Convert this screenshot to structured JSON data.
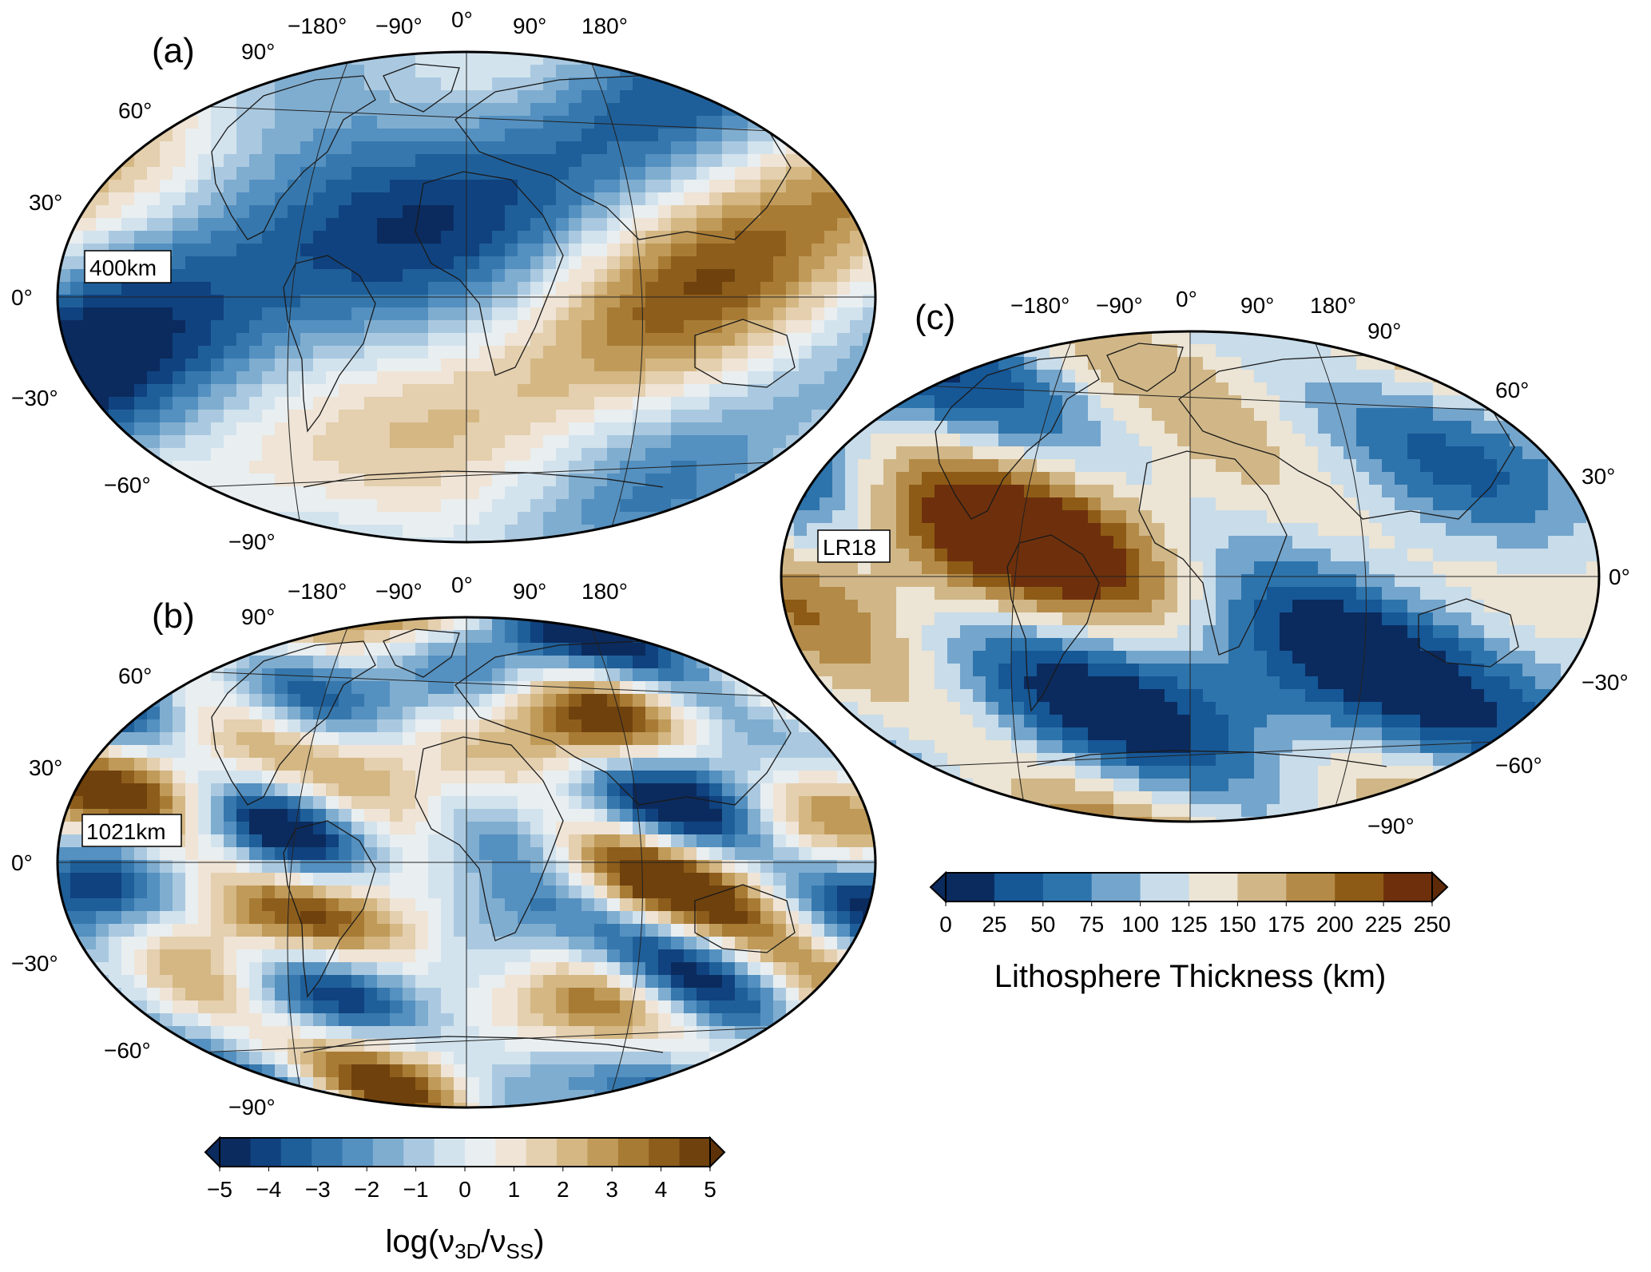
{
  "panels": [
    {
      "id": "a",
      "panel_label": "(a)",
      "depth_label": "400km",
      "palette": "viscosity",
      "seed": 11,
      "bias": 0.0,
      "top_lon_labels": [
        "−180°",
        "−90°",
        "0°",
        "90°",
        "180°"
      ],
      "top_lat_label": "90°",
      "bottom_lat_label": "−90°",
      "side_lat_labels": [
        "60°",
        "30°",
        "0°",
        "−30°",
        "−60°"
      ]
    },
    {
      "id": "b",
      "panel_label": "(b)",
      "depth_label": "1021km",
      "palette": "viscosity",
      "seed": 29,
      "bias": 0.0,
      "top_lon_labels": [
        "−180°",
        "−90°",
        "0°",
        "90°",
        "180°"
      ],
      "top_lat_label": "90°",
      "bottom_lat_label": "−90°",
      "side_lat_labels": [
        "60°",
        "30°",
        "0°",
        "−30°",
        "−60°"
      ]
    },
    {
      "id": "c",
      "panel_label": "(c)",
      "depth_label": "LR18",
      "palette": "lithosphere",
      "seed": 47,
      "bias": 0.0,
      "top_lon_labels": [
        "−180°",
        "−90°",
        "0°",
        "90°",
        "180°"
      ],
      "top_lat_label": "90°",
      "bottom_lat_label": "−90°",
      "side_lat_labels": [
        "60°",
        "30°",
        "0°",
        "−30°",
        "−60°"
      ]
    }
  ],
  "colorbars": [
    {
      "id": "viscosity",
      "ticks": [
        "−5",
        "−4",
        "−3",
        "−2",
        "−1",
        "0",
        "1",
        "2",
        "3",
        "4",
        "5"
      ],
      "title": "log(ν",
      "title_sub1": "3D",
      "title_mid": "/ν",
      "title_sub2": "SS",
      "title_end": ")",
      "colors": [
        "#0b2b5e",
        "#10427f",
        "#1f5f99",
        "#3678ad",
        "#5490c0",
        "#7fadd0",
        "#aac9e0",
        "#d2e3ee",
        "#e9eef0",
        "#efe4d6",
        "#e4cfae",
        "#d4b783",
        "#c09a59",
        "#a87b35",
        "#8d5d1c",
        "#6f410d"
      ],
      "under_color": "#0b2b5e",
      "over_color": "#5e3208"
    },
    {
      "id": "lithosphere",
      "ticks": [
        "0",
        "25",
        "50",
        "75",
        "100",
        "125",
        "150",
        "175",
        "200",
        "225",
        "250"
      ],
      "title": "Lithosphere Thickness (km)",
      "colors": [
        "#0b2b5e",
        "#165796",
        "#2e74ac",
        "#74a5cc",
        "#c8dcea",
        "#ece4d4",
        "#d1b787",
        "#b48a48",
        "#8d5b16",
        "#6e300c"
      ],
      "under_color": "#0b2b5e",
      "over_color": "#5e2a08"
    }
  ]
}
